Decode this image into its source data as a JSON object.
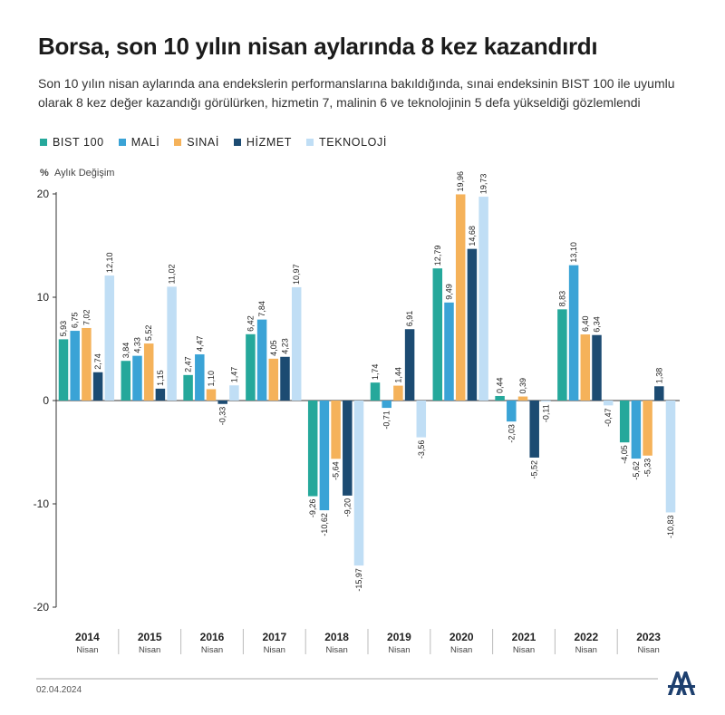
{
  "header": {
    "title": "Borsa, son 10 yılın nisan aylarında 8 kez kazandırdı",
    "subtitle": "Son 10 yılın nisan aylarında ana endekslerin performanslarına bakıldığında, sınai endeksinin BIST 100 ile uyumlu olarak 8 kez değer kazandığı görülürken, hizmetin 7, malinin 6 ve teknolojinin 5 defa yükseldiği gözlemlendi"
  },
  "footer": {
    "date": "02.04.2024",
    "logo": "AA"
  },
  "chart_data": {
    "type": "bar",
    "title": "Borsa, son 10 yılın nisan aylarında 8 kez kazandırdı",
    "ylabel_unit": "%",
    "ylabel": "Aylık Değişim",
    "ylim": [
      -20,
      20
    ],
    "yticks": [
      -20,
      -10,
      0,
      10,
      20
    ],
    "legend_position": "top-left",
    "grid": false,
    "categories": [
      "2014",
      "2015",
      "2016",
      "2017",
      "2018",
      "2019",
      "2020",
      "2021",
      "2022",
      "2023"
    ],
    "category_sublabel": "Nisan",
    "series": [
      {
        "name": "BIST 100",
        "color": "#25a89b",
        "values": [
          5.93,
          3.84,
          2.47,
          6.42,
          -9.26,
          1.74,
          12.79,
          0.44,
          8.83,
          -4.05
        ],
        "labels": [
          "5,93",
          "3,84",
          "2,47",
          "6,42",
          "-9,26",
          "1,74",
          "12,79",
          "0,44",
          "8,83",
          "-4,05"
        ]
      },
      {
        "name": "MALİ",
        "color": "#3aa3d6",
        "values": [
          6.75,
          4.33,
          4.47,
          7.84,
          -10.62,
          -0.71,
          9.49,
          -2.03,
          13.1,
          -5.62
        ],
        "labels": [
          "6,75",
          "4,33",
          "4,47",
          "7,84",
          "-10,62",
          "-0,71",
          "9,49",
          "-2,03",
          "13,10",
          "-5,62"
        ]
      },
      {
        "name": "SINAİ",
        "color": "#f5b25a",
        "values": [
          7.02,
          5.52,
          1.1,
          4.05,
          -5.64,
          1.44,
          19.96,
          0.39,
          6.4,
          -5.33
        ],
        "labels": [
          "7,02",
          "5,52",
          "1,10",
          "4,05",
          "-5,64",
          "1,44",
          "19,96",
          "0,39",
          "6,40",
          "-5,33"
        ]
      },
      {
        "name": "HİZMET",
        "color": "#1c4b72",
        "values": [
          2.74,
          1.15,
          -0.33,
          4.23,
          -9.2,
          6.91,
          14.68,
          -5.52,
          6.34,
          1.38
        ],
        "labels": [
          "2,74",
          "1,15",
          "-0,33",
          "4,23",
          "-9,20",
          "6,91",
          "14,68",
          "-5,52",
          "6,34",
          "1,38"
        ]
      },
      {
        "name": "TEKNOLOJİ",
        "color": "#c0def5",
        "values": [
          12.1,
          11.02,
          1.47,
          10.97,
          -15.97,
          -3.56,
          19.73,
          -0.11,
          -0.47,
          -10.83
        ],
        "labels": [
          "12,10",
          "11,02",
          "1,47",
          "10,97",
          "-15,97",
          "-3,56",
          "19,73",
          "-0,11",
          "-0,47",
          "-10,83"
        ]
      }
    ]
  }
}
